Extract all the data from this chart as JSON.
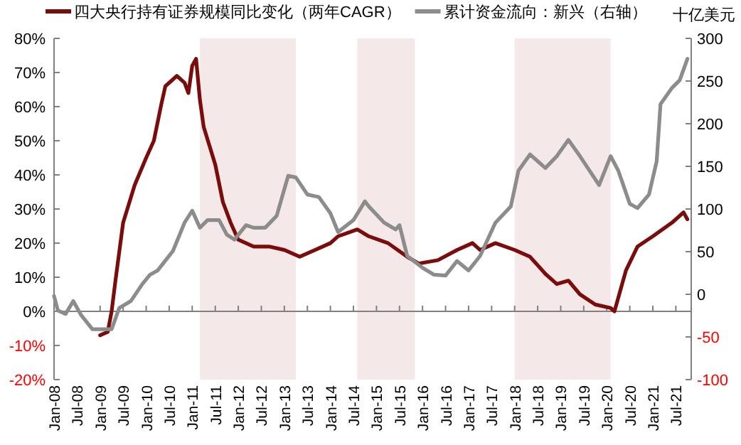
{
  "chart_data": {
    "type": "line",
    "legend": "top",
    "y2label": "十亿美元",
    "xlim": [
      "2008-01",
      "2021-11"
    ],
    "xticks": [
      {
        "value": "2008-01",
        "label": "Jan-08"
      },
      {
        "value": "2008-07",
        "label": "Jul-08"
      },
      {
        "value": "2009-01",
        "label": "Jan-09"
      },
      {
        "value": "2009-07",
        "label": "Jul-09"
      },
      {
        "value": "2010-01",
        "label": "Jan-10"
      },
      {
        "value": "2010-07",
        "label": "Jul-10"
      },
      {
        "value": "2011-01",
        "label": "Jan-11"
      },
      {
        "value": "2011-07",
        "label": "Jul-11"
      },
      {
        "value": "2012-01",
        "label": "Jan-12"
      },
      {
        "value": "2012-07",
        "label": "Jul-12"
      },
      {
        "value": "2013-01",
        "label": "Jan-13"
      },
      {
        "value": "2013-07",
        "label": "Jul-13"
      },
      {
        "value": "2014-01",
        "label": "Jan-14"
      },
      {
        "value": "2014-07",
        "label": "Jul-14"
      },
      {
        "value": "2015-01",
        "label": "Jan-15"
      },
      {
        "value": "2015-07",
        "label": "Jul-15"
      },
      {
        "value": "2016-01",
        "label": "Jan-16"
      },
      {
        "value": "2016-07",
        "label": "Jul-16"
      },
      {
        "value": "2017-01",
        "label": "Jan-17"
      },
      {
        "value": "2017-07",
        "label": "Jul-17"
      },
      {
        "value": "2018-01",
        "label": "Jan-18"
      },
      {
        "value": "2018-07",
        "label": "Jul-18"
      },
      {
        "value": "2019-01",
        "label": "Jan-19"
      },
      {
        "value": "2019-07",
        "label": "Jul-19"
      },
      {
        "value": "2020-01",
        "label": "Jan-20"
      },
      {
        "value": "2020-07",
        "label": "Jul-20"
      },
      {
        "value": "2021-01",
        "label": "Jan-21"
      },
      {
        "value": "2021-07",
        "label": "Jul-21"
      }
    ],
    "ylim": [
      -20,
      80
    ],
    "yticks": [
      {
        "value": -20,
        "label": "-20%"
      },
      {
        "value": -10,
        "label": "-10%"
      },
      {
        "value": 0,
        "label": "0%"
      },
      {
        "value": 10,
        "label": "10%"
      },
      {
        "value": 20,
        "label": "20%"
      },
      {
        "value": 30,
        "label": "30%"
      },
      {
        "value": 40,
        "label": "40%"
      },
      {
        "value": 50,
        "label": "50%"
      },
      {
        "value": 60,
        "label": "60%"
      },
      {
        "value": 70,
        "label": "70%"
      },
      {
        "value": 80,
        "label": "80%"
      }
    ],
    "y2lim": [
      -100,
      300
    ],
    "y2ticks": [
      -100,
      -50,
      0,
      50,
      100,
      150,
      200,
      250,
      300
    ],
    "bands": [
      {
        "axis": "x",
        "from": "2011-03",
        "to": "2013-04",
        "color": "#f5e8e8"
      },
      {
        "axis": "x",
        "from": "2014-08",
        "to": "2015-11",
        "color": "#f5e8e8"
      },
      {
        "axis": "x",
        "from": "2018-01",
        "to": "2020-02",
        "color": "#f5e8e8"
      }
    ],
    "series": [
      {
        "name": "四大央行持有证券规模同比变化（两年CAGR）",
        "color": "#7b0c0c",
        "x": [
          "2009-01",
          "2009-03",
          "2009-04",
          "2009-05",
          "2009-07",
          "2009-10",
          "2010-01",
          "2010-03",
          "2010-05",
          "2010-06",
          "2010-09",
          "2010-11",
          "2010-12",
          "2011-01",
          "2011-02",
          "2011-03",
          "2011-04",
          "2011-07",
          "2011-09",
          "2011-11",
          "2012-01",
          "2012-05",
          "2012-09",
          "2013-01",
          "2013-05",
          "2013-09",
          "2014-01",
          "2014-03",
          "2014-08",
          "2014-11",
          "2015-04",
          "2015-09",
          "2015-12",
          "2016-05",
          "2016-10",
          "2017-02",
          "2017-04",
          "2017-08",
          "2018-01",
          "2018-05",
          "2018-09",
          "2018-12",
          "2019-03",
          "2019-06",
          "2019-10",
          "2020-02",
          "2020-03",
          "2020-06",
          "2020-09",
          "2021-01",
          "2021-06",
          "2021-09",
          "2021-10"
        ],
        "values": [
          -7,
          -6,
          0,
          9,
          26,
          37,
          45,
          50,
          61,
          66,
          69,
          67,
          64,
          72,
          74,
          62,
          54,
          43,
          32,
          26,
          21,
          19,
          19,
          18,
          16,
          18,
          20,
          22,
          24,
          22,
          20,
          16,
          14,
          15,
          18,
          20,
          18,
          20,
          18,
          16,
          11,
          8,
          9,
          5,
          2,
          1,
          0,
          12,
          19,
          22,
          26,
          29,
          27
        ]
      },
      {
        "name": "累计资金流向：新兴（右轴）",
        "color": "#8c8c8c",
        "axis": "y2",
        "x": [
          "2008-01",
          "2008-02",
          "2008-04",
          "2008-06",
          "2008-08",
          "2008-11",
          "2009-02",
          "2009-04",
          "2009-06",
          "2009-09",
          "2009-12",
          "2010-02",
          "2010-04",
          "2010-08",
          "2010-11",
          "2011-01",
          "2011-03",
          "2011-05",
          "2011-08",
          "2011-10",
          "2011-12",
          "2012-03",
          "2012-05",
          "2012-08",
          "2012-11",
          "2013-02",
          "2013-04",
          "2013-07",
          "2013-10",
          "2014-01",
          "2014-03",
          "2014-07",
          "2014-10",
          "2014-11",
          "2015-03",
          "2015-06",
          "2015-07",
          "2015-09",
          "2016-01",
          "2016-04",
          "2016-07",
          "2016-10",
          "2017-01",
          "2017-04",
          "2017-08",
          "2017-12",
          "2018-02",
          "2018-05",
          "2018-09",
          "2018-12",
          "2019-03",
          "2019-06",
          "2019-11",
          "2020-02",
          "2020-04",
          "2020-07",
          "2020-09",
          "2020-12",
          "2021-02",
          "2021-03",
          "2021-06",
          "2021-08",
          "2021-10"
        ],
        "values": [
          -2,
          -19,
          -23,
          -8,
          -24,
          -41,
          -41,
          -41,
          -16,
          -8,
          12,
          23,
          28,
          51,
          84,
          98,
          78,
          87,
          87,
          70,
          64,
          81,
          78,
          78,
          92,
          139,
          137,
          117,
          114,
          95,
          73,
          87,
          109,
          103,
          84,
          76,
          81,
          45,
          31,
          23,
          22,
          39,
          28,
          45,
          84,
          103,
          145,
          164,
          148,
          162,
          181,
          162,
          128,
          162,
          145,
          106,
          101,
          117,
          156,
          223,
          242,
          251,
          276
        ]
      }
    ]
  }
}
